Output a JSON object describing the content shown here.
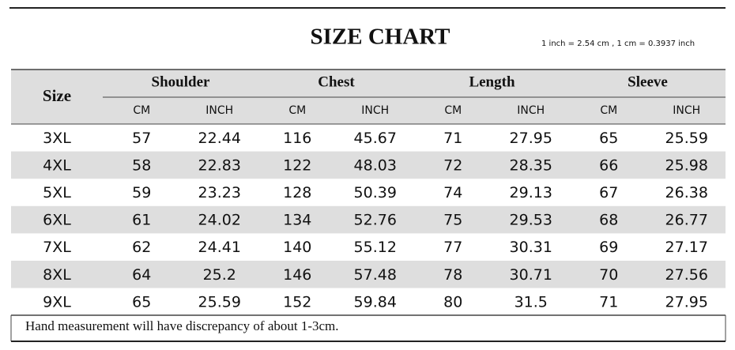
{
  "header": {
    "title": "SIZE CHART",
    "note": "1 inch = 2.54 cm , 1 cm = 0.3937 inch"
  },
  "table": {
    "size_header": "Size",
    "groups": [
      {
        "name": "Shoulder",
        "units": [
          "CM",
          "INCH"
        ]
      },
      {
        "name": "Chest",
        "units": [
          "CM",
          "INCH"
        ]
      },
      {
        "name": "Length",
        "units": [
          "CM",
          "INCH"
        ]
      },
      {
        "name": "Sleeve",
        "units": [
          "CM",
          "INCH"
        ]
      }
    ],
    "rows": [
      [
        "3XL",
        57,
        22.44,
        116,
        45.67,
        71,
        27.95,
        65,
        25.59
      ],
      [
        "4XL",
        58,
        22.83,
        122,
        48.03,
        72,
        28.35,
        66,
        25.98
      ],
      [
        "5XL",
        59,
        23.23,
        128,
        50.39,
        74,
        29.13,
        67,
        26.38
      ],
      [
        "6XL",
        61,
        24.02,
        134,
        52.76,
        75,
        29.53,
        68,
        26.77
      ],
      [
        "7XL",
        62,
        24.41,
        140,
        55.12,
        77,
        30.31,
        69,
        27.17
      ],
      [
        "8XL",
        64,
        25.2,
        146,
        57.48,
        78,
        30.71,
        70,
        27.56
      ],
      [
        "9XL",
        65,
        25.59,
        152,
        59.84,
        80,
        31.5,
        71,
        27.95
      ]
    ]
  },
  "footer": "Hand measurement will have discrepancy of about 1-3cm."
}
